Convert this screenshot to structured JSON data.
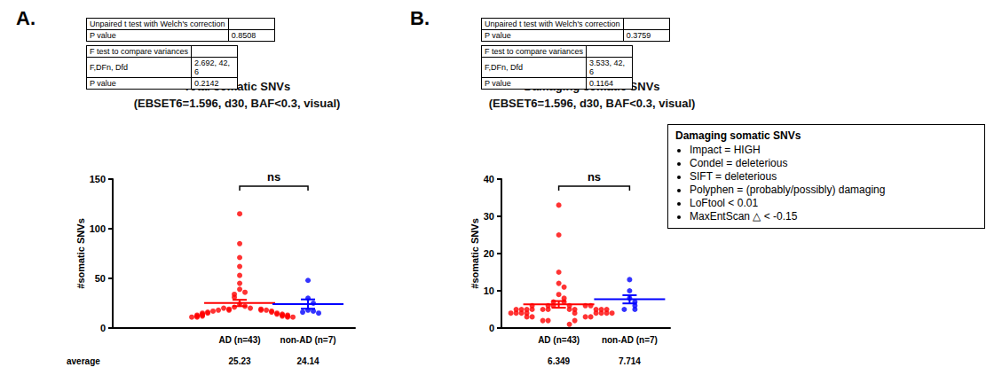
{
  "chart_data": [
    {
      "type": "scatter",
      "panel_label": "A.",
      "title": "Total somatic SNVs",
      "subtitle": "(EBSET6=1.596, d30, BAF<0.3, visual)",
      "ylabel": "#somatic SNVs",
      "categories": [
        "AD (n=43)",
        "non-AD (n=7)"
      ],
      "colors": [
        "#ff0000",
        "#0000ff"
      ],
      "values": [
        [
          115,
          85,
          71,
          62,
          53,
          45,
          39,
          36,
          34,
          31,
          24,
          22,
          21,
          20,
          19,
          18,
          20,
          19,
          18,
          18,
          18,
          17,
          17,
          16,
          16,
          15,
          15,
          15,
          14,
          14,
          14,
          13,
          13,
          13,
          13,
          12,
          12,
          12,
          12,
          11,
          11,
          11,
          11
        ],
        [
          48,
          30,
          25,
          18,
          17,
          16,
          15
        ]
      ],
      "averages": [
        25.23,
        24.14
      ],
      "sem": [
        3.2,
        4.7
      ],
      "average_label": "average",
      "significance": "ns",
      "ylim": [
        0,
        150
      ],
      "yticks": [
        0,
        50,
        100,
        150
      ],
      "grid": false,
      "stats": [
        {
          "header": "Unpaired t test with Welch's correction",
          "rows": [
            [
              "P value",
              "0.8508"
            ]
          ]
        },
        {
          "header": "F test to compare variances",
          "rows": [
            [
              "F,DFn, Dfd",
              "2.692, 42, 6"
            ],
            [
              "P value",
              "0.2142"
            ]
          ]
        }
      ]
    },
    {
      "type": "scatter",
      "panel_label": "B.",
      "title": "Damaging somatic SNVs",
      "subtitle": "(EBSET6=1.596, d30, BAF<0.3, visual)",
      "ylabel": "#somatic SNVs",
      "categories": [
        "AD (n=43)",
        "non-AD (n=7)"
      ],
      "colors": [
        "#ff0000",
        "#0000ff"
      ],
      "values": [
        [
          33,
          25,
          15,
          12,
          11,
          9,
          8,
          7,
          7,
          6,
          6,
          6,
          5,
          5,
          5,
          5,
          6,
          6,
          6,
          5,
          4,
          5,
          5,
          5,
          5,
          5,
          5,
          4,
          4,
          4,
          4,
          4,
          4,
          4,
          4,
          3,
          3,
          3,
          3,
          2,
          2,
          2,
          1
        ],
        [
          13,
          10,
          8,
          7,
          6,
          5,
          5
        ]
      ],
      "averages": [
        6.349,
        7.714
      ],
      "sem": [
        0.9,
        1.1
      ],
      "significance": "ns",
      "ylim": [
        0,
        40
      ],
      "yticks": [
        0,
        10,
        20,
        30,
        40
      ],
      "grid": false,
      "stats": [
        {
          "header": "Unpaired t test with Welch's correction",
          "rows": [
            [
              "P value",
              "0.3759"
            ]
          ]
        },
        {
          "header": "F test to compare variances",
          "rows": [
            [
              "F,DFn, Dfd",
              "3.533, 42, 6"
            ],
            [
              "P value",
              "0.1164"
            ]
          ]
        }
      ],
      "note": {
        "title": "Damaging somatic SNVs",
        "items": [
          "Impact = HIGH",
          "Condel = deleterious",
          "SIFT = deleterious",
          "Polyphen = (probably/possibly) damaging",
          "LoFtool < 0.01",
          "MaxEntScan △ < -0.15"
        ]
      }
    }
  ]
}
